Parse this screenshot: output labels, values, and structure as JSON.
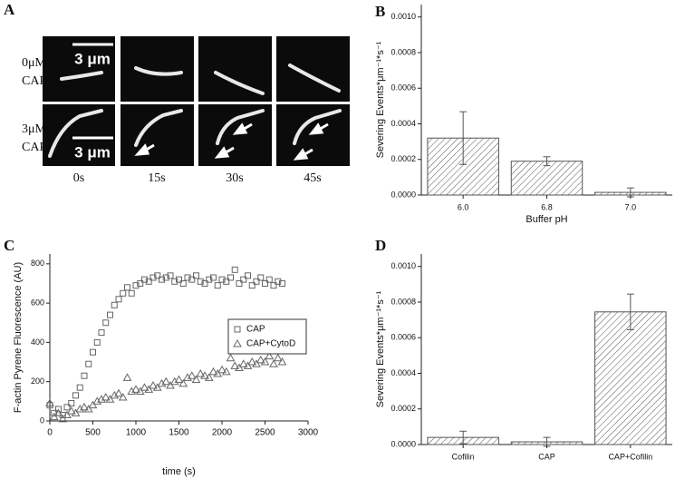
{
  "panel_a": {
    "label": "A",
    "rows": [
      {
        "concentration": "0μM",
        "protein": "CAP"
      },
      {
        "concentration": "3μM",
        "protein": "CAP"
      }
    ],
    "scale_bars": [
      "3 μm",
      "3 μm"
    ],
    "times": [
      "0s",
      "15s",
      "30s",
      "45s"
    ]
  },
  "chart_data": [
    {
      "type": "bar",
      "label": "B",
      "categories": [
        "6.0",
        "6.8",
        "7.0"
      ],
      "values": [
        0.00032,
        0.00019,
        1.5e-05
      ],
      "errors": [
        0.000148,
        2.5e-05,
        2.5e-05
      ],
      "color": "#555555",
      "hatch": true,
      "xlabel": "Buffer pH",
      "ylabel": "Severing Events*μm⁻¹*s⁻¹",
      "ylim": [
        0,
        0.00107
      ],
      "yticks": [
        {
          "value": 0,
          "label": "0.0000"
        },
        {
          "value": 0.0002,
          "label": "0.0002"
        },
        {
          "value": 0.0004,
          "label": "0.0004"
        },
        {
          "value": 0.0006,
          "label": "0.0006"
        },
        {
          "value": 0.0008,
          "label": "0.0008"
        },
        {
          "value": 0.001,
          "label": "0.0010"
        }
      ]
    },
    {
      "type": "scatter",
      "label": "C",
      "x": [
        0,
        50,
        100,
        150,
        200,
        250,
        300,
        350,
        400,
        450,
        500,
        550,
        600,
        650,
        700,
        750,
        800,
        850,
        900,
        950,
        1000,
        1050,
        1100,
        1150,
        1200,
        1250,
        1300,
        1350,
        1400,
        1450,
        1500,
        1550,
        1600,
        1650,
        1700,
        1750,
        1800,
        1850,
        1900,
        1950,
        2000,
        2050,
        2100,
        2150,
        2200,
        2250,
        2300,
        2350,
        2400,
        2450,
        2500,
        2550,
        2600,
        2650,
        2700
      ],
      "series": [
        {
          "name": "CAP",
          "marker": "square",
          "color": "#666666",
          "values": [
            80,
            40,
            60,
            30,
            70,
            90,
            130,
            170,
            230,
            290,
            350,
            400,
            450,
            500,
            540,
            590,
            620,
            650,
            680,
            650,
            690,
            700,
            720,
            710,
            730,
            740,
            720,
            730,
            740,
            710,
            720,
            700,
            730,
            720,
            740,
            710,
            700,
            720,
            730,
            690,
            720,
            710,
            730,
            770,
            700,
            720,
            740,
            690,
            710,
            730,
            700,
            720,
            690,
            710,
            700
          ]
        },
        {
          "name": "CAP+CytoD",
          "marker": "triangle",
          "color": "#666666",
          "values": [
            90,
            20,
            40,
            10,
            30,
            50,
            40,
            60,
            70,
            60,
            80,
            100,
            110,
            120,
            110,
            130,
            140,
            120,
            220,
            150,
            160,
            150,
            170,
            160,
            180,
            170,
            190,
            200,
            180,
            200,
            210,
            190,
            220,
            230,
            210,
            240,
            230,
            220,
            250,
            240,
            260,
            250,
            320,
            280,
            270,
            290,
            280,
            300,
            290,
            310,
            300,
            330,
            290,
            320,
            300
          ]
        }
      ],
      "xlabel": "time (s)",
      "ylabel": "F-actin Pyrene Fluorescence (AU)",
      "xlim": [
        0,
        3000
      ],
      "xticks": [
        0,
        500,
        1000,
        1500,
        2000,
        2500,
        3000
      ],
      "ylim": [
        0,
        850
      ],
      "yticks": [
        0,
        200,
        400,
        600,
        800
      ],
      "legend": "center right"
    },
    {
      "type": "bar",
      "label": "D",
      "categories": [
        "Cofilin",
        "CAP",
        "CAP+Cofilin"
      ],
      "values": [
        4e-05,
        1.5e-05,
        0.000745
      ],
      "errors": [
        3.5e-05,
        2.5e-05,
        0.0001
      ],
      "color": "#555555",
      "hatch": true,
      "ylabel": "Severing Events*μm⁻¹*s⁻¹",
      "ylim": [
        0,
        0.00107
      ],
      "yticks": [
        {
          "value": 0,
          "label": "0.0000"
        },
        {
          "value": 0.0002,
          "label": "0.0002"
        },
        {
          "value": 0.0004,
          "label": "0.0004"
        },
        {
          "value": 0.0006,
          "label": "0.0006"
        },
        {
          "value": 0.0008,
          "label": "0.0008"
        },
        {
          "value": 0.001,
          "label": "0.0010"
        }
      ]
    }
  ]
}
